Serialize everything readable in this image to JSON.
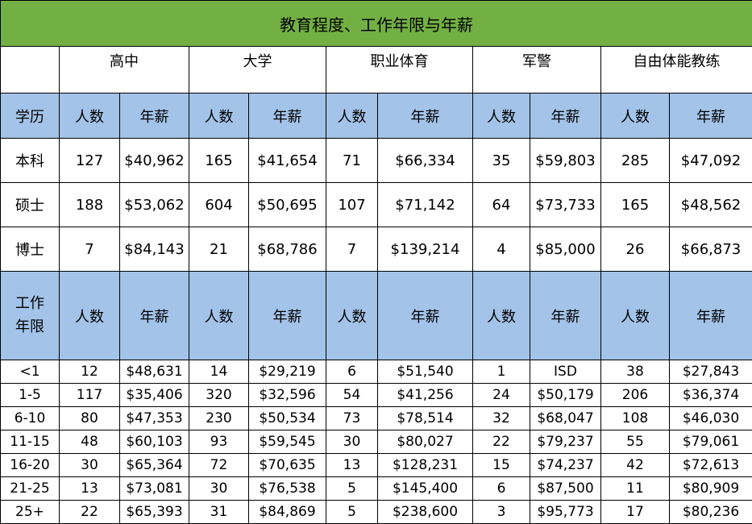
{
  "title": "教育程度、工作年限与年薪",
  "groups": [
    "高中",
    "大学",
    "职业体育",
    "军警",
    "自由体能教练"
  ],
  "headers": {
    "education_label": "学历",
    "years_label_line1": "工作",
    "years_label_line2": "年限",
    "count": "人数",
    "salary": "年薪"
  },
  "education_rows": [
    {
      "label": "本科",
      "cells": [
        "127",
        "$40,962",
        "165",
        "$41,654",
        "71",
        "$66,334",
        "35",
        "$59,803",
        "285",
        "$47,092"
      ]
    },
    {
      "label": "硕士",
      "cells": [
        "188",
        "$53,062",
        "604",
        "$50,695",
        "107",
        "$71,142",
        "64",
        "$73,733",
        "165",
        "$48,562"
      ]
    },
    {
      "label": "博士",
      "cells": [
        "7",
        "$84,143",
        "21",
        "$68,786",
        "7",
        "$139,214",
        "4",
        "$85,000",
        "26",
        "$66,873"
      ]
    }
  ],
  "years_rows": [
    {
      "label": "<1",
      "cells": [
        "12",
        "$48,631",
        "14",
        "$29,219",
        "6",
        "$51,540",
        "1",
        "ISD",
        "38",
        "$27,843"
      ]
    },
    {
      "label": "1-5",
      "cells": [
        "117",
        "$35,406",
        "320",
        "$32,596",
        "54",
        "$41,256",
        "24",
        "$50,179",
        "206",
        "$36,374"
      ]
    },
    {
      "label": "6-10",
      "cells": [
        "80",
        "$47,353",
        "230",
        "$50,534",
        "73",
        "$78,514",
        "32",
        "$68,047",
        "108",
        "$46,030"
      ]
    },
    {
      "label": "11-15",
      "cells": [
        "48",
        "$60,103",
        "93",
        "$59,545",
        "30",
        "$80,027",
        "22",
        "$79,237",
        "55",
        "$79,061"
      ]
    },
    {
      "label": "16-20",
      "cells": [
        "30",
        "$65,364",
        "72",
        "$70,635",
        "13",
        "$128,231",
        "15",
        "$74,237",
        "42",
        "$72,613"
      ]
    },
    {
      "label": "21-25",
      "cells": [
        "13",
        "$73,081",
        "30",
        "$76,538",
        "5",
        "$145,400",
        "6",
        "$87,500",
        "11",
        "$80,909"
      ]
    },
    {
      "label": "25+",
      "cells": [
        "22",
        "$65,393",
        "31",
        "$84,869",
        "5",
        "$238,600",
        "3",
        "$95,773",
        "17",
        "$80,236"
      ]
    }
  ],
  "colors": {
    "title_bg": "#72b043",
    "header_bg": "#a3c3e8"
  }
}
